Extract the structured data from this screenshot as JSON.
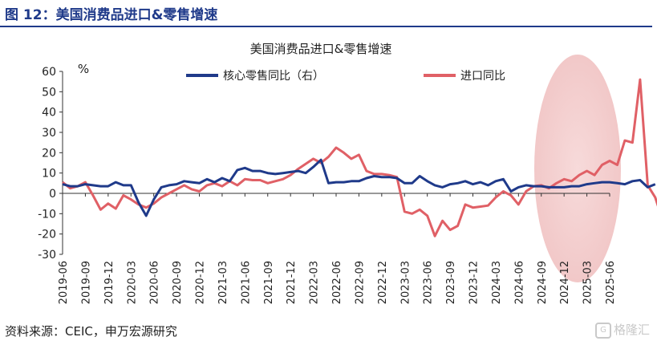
{
  "figure_label": "图 12：美国消费品进口&零售增速",
  "source": "资料来源：CEIC，申万宏源研究",
  "watermark": "格隆汇",
  "chart_data": {
    "type": "line",
    "title": "美国消费品进口&零售增速",
    "unit_label": "%",
    "ylim": [
      -30,
      60
    ],
    "yticks": [
      -30,
      -20,
      -10,
      0,
      10,
      20,
      30,
      40,
      50,
      60
    ],
    "tick_labels": [
      "2019-06",
      "2019-09",
      "2019-12",
      "2020-03",
      "2020-06",
      "2020-09",
      "2020-12",
      "2021-03",
      "2021-06",
      "2021-09",
      "2021-12",
      "2022-03",
      "2022-06",
      "2022-09",
      "2022-12",
      "2023-03",
      "2023-06",
      "2023-09",
      "2023-12",
      "2024-03",
      "2024-06",
      "2024-09",
      "2024-12",
      "2025-03",
      "2025-06"
    ],
    "x_start": "2019-06",
    "x_end": "2025-06",
    "grid": false,
    "legend_position": "top",
    "series": [
      {
        "name": "核心零售同比（右）",
        "color": "#1f3a8a",
        "values": [
          4.5,
          3.5,
          3.5,
          4.5,
          4,
          3.5,
          3.5,
          5.5,
          4,
          4,
          -4.5,
          -11,
          -3,
          3,
          4,
          4.5,
          6,
          5.5,
          5,
          7,
          5.5,
          7.5,
          6,
          11.5,
          12.5,
          11,
          11,
          10,
          9.5,
          10,
          10.5,
          11,
          10,
          13,
          16.5,
          5,
          5.5,
          5.5,
          6,
          6,
          7.5,
          8.5,
          8,
          8,
          7.5,
          5,
          5,
          8.5,
          6,
          4,
          3,
          4.5,
          5,
          6,
          4.5,
          5.5,
          4,
          6,
          7,
          1,
          3,
          4,
          3.5,
          3.5,
          3,
          3,
          3,
          3.5,
          3.5,
          4.5,
          5,
          5.5,
          5.5,
          5,
          4.5,
          6,
          6.5,
          3,
          4.5
        ]
      },
      {
        "name": "进口同比",
        "color": "#e06066",
        "values": [
          5.5,
          2.5,
          3.5,
          5.5,
          -1,
          -8,
          -5,
          -7.5,
          -1,
          -3,
          -5.5,
          -7,
          -5,
          -2,
          0,
          2,
          4,
          2,
          1,
          4,
          5,
          3.5,
          6,
          4,
          7,
          6.5,
          6.5,
          5,
          6,
          7,
          9,
          12,
          14.5,
          17,
          15,
          18,
          22.5,
          20,
          17,
          19,
          11,
          9.5,
          9.5,
          9,
          8,
          -9,
          -10,
          -8,
          -11,
          -21,
          -13.5,
          -18,
          -16,
          -5.5,
          -7,
          -6.5,
          -6,
          -2,
          1,
          -1,
          -5.5,
          1,
          3.5,
          4,
          2.5,
          5,
          7,
          6,
          9,
          11,
          9,
          14,
          16,
          14,
          26,
          25,
          56,
          4,
          -2,
          -13.5
        ]
      }
    ]
  }
}
